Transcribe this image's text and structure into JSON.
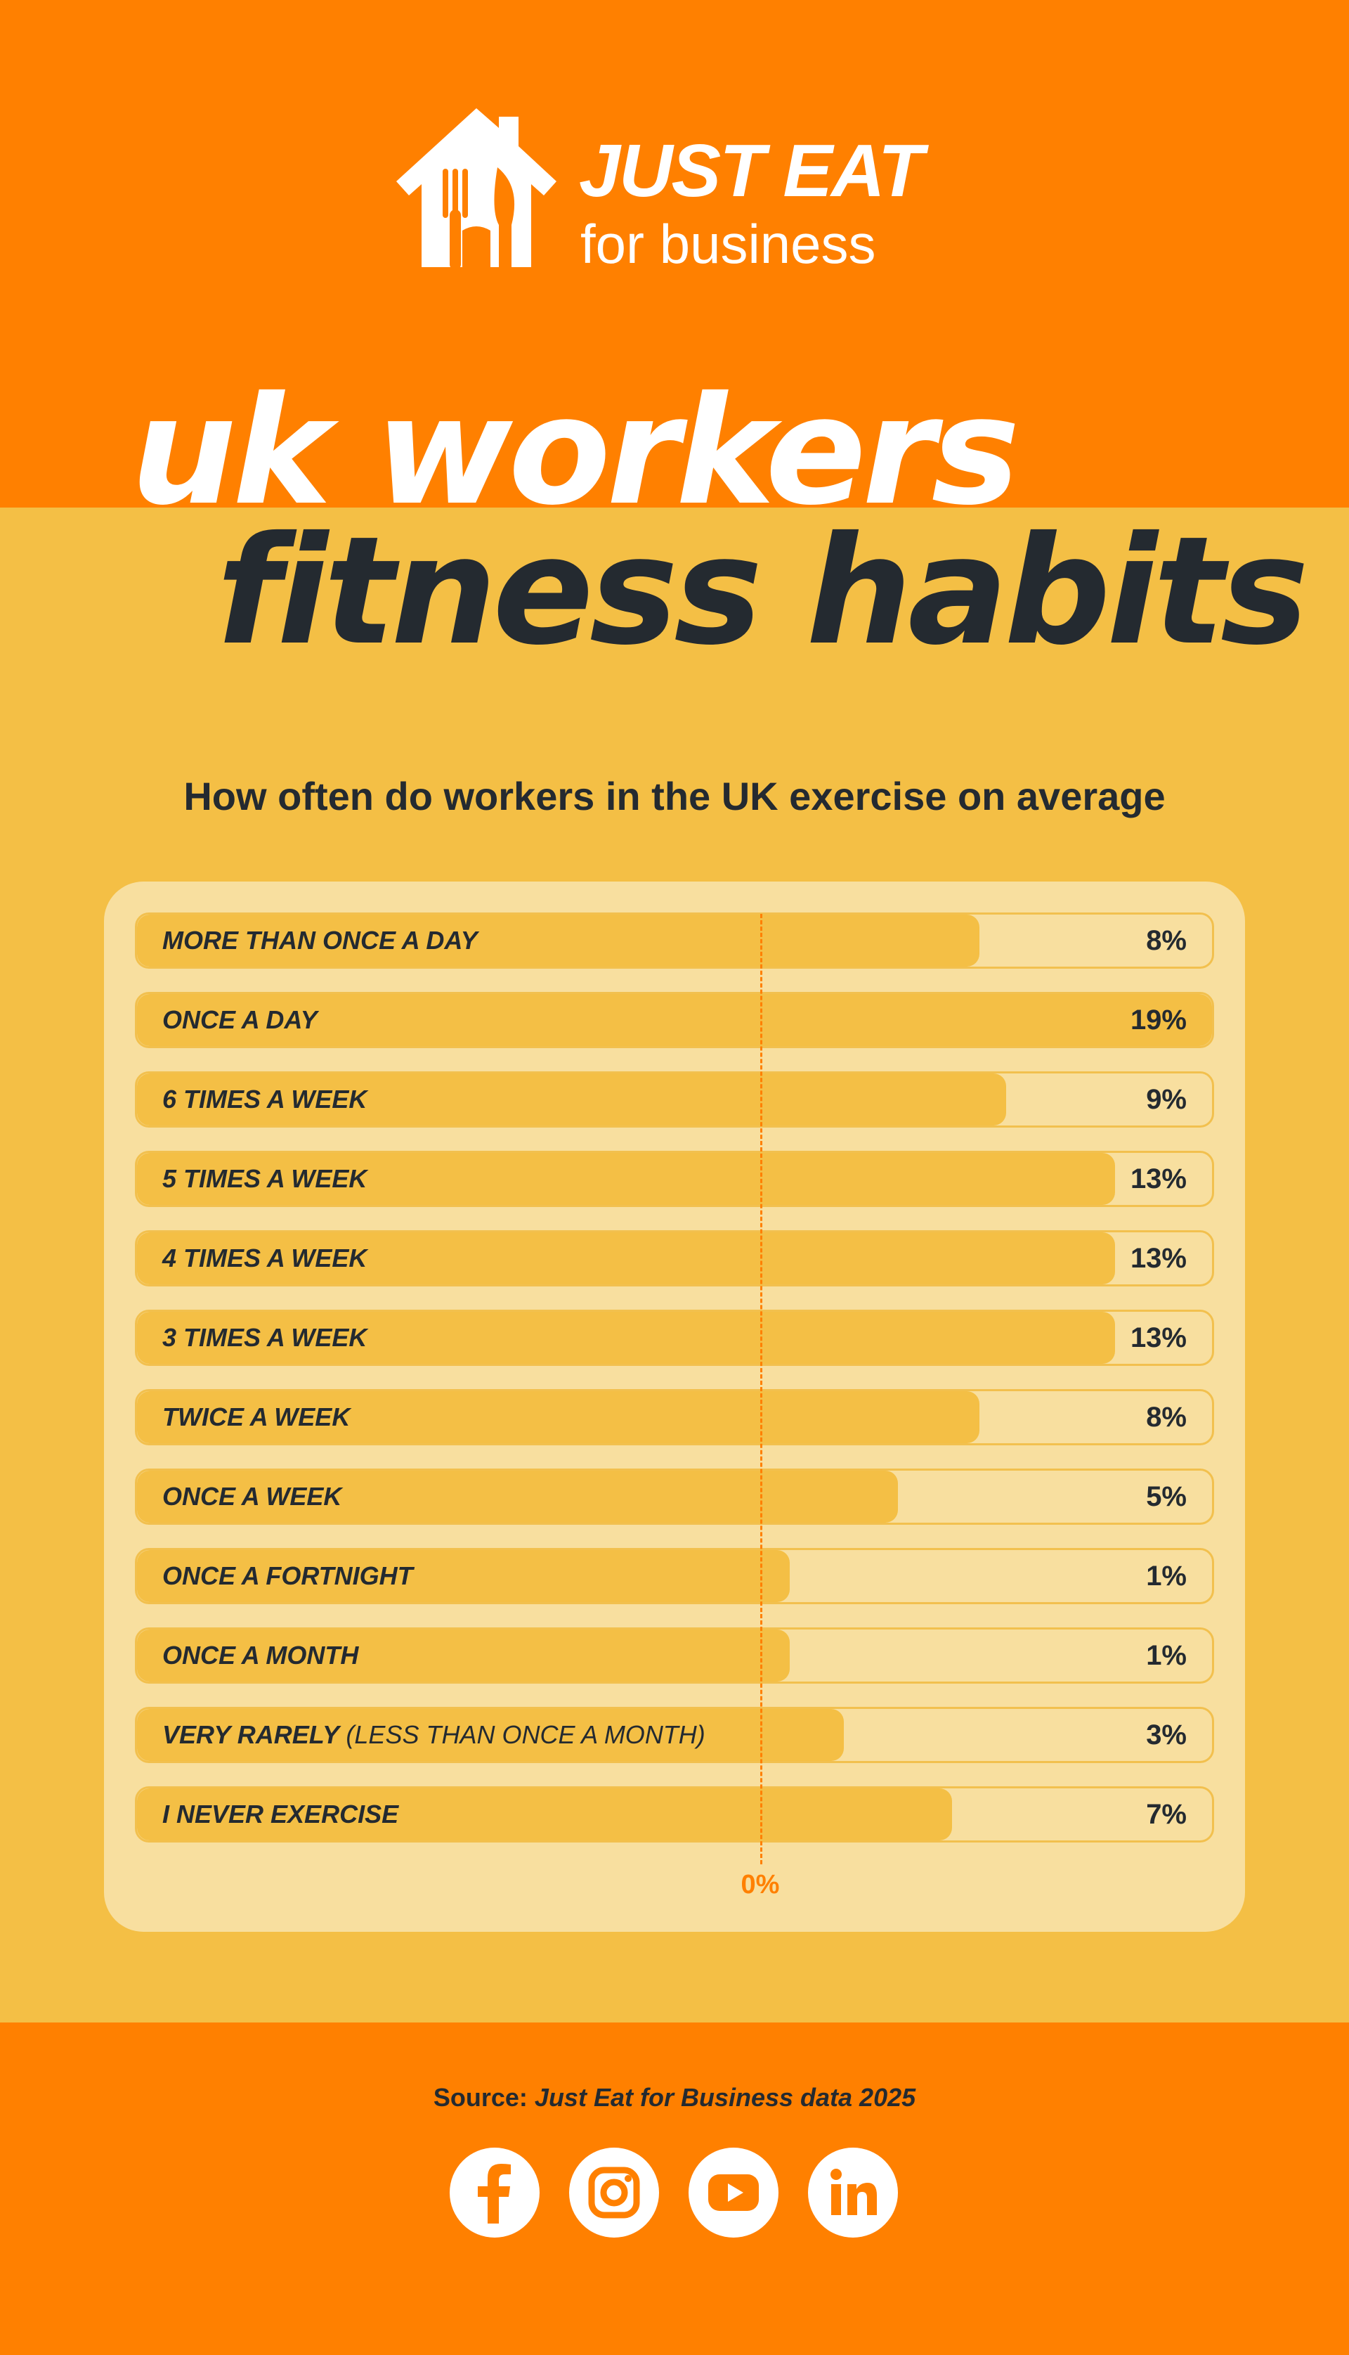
{
  "brand": {
    "name": "JUST EAT",
    "tagline": "for business"
  },
  "title": {
    "line1": "uk workers",
    "line2": "fitness habits"
  },
  "colors": {
    "orange": "#FF8000",
    "yellow": "#F4BF45",
    "panel": "#F8DF9F",
    "dark": "#242A30",
    "white": "#FFFFFF"
  },
  "chart_data": {
    "type": "bar",
    "title": "How often do workers in the UK exercise on average",
    "orientation": "horizontal",
    "axis_label": "0%",
    "categories": [
      "MORE THAN ONCE A DAY",
      "ONCE A DAY",
      "6 TIMES A WEEK",
      "5 TIMES A WEEK",
      "4 TIMES A WEEK",
      "3 TIMES A WEEK",
      "TWICE A WEEK",
      "ONCE A WEEK",
      "ONCE A FORTNIGHT",
      "ONCE A MONTH",
      "VERY RARELY (LESS THAN ONCE A MONTH)",
      "I NEVER EXERCISE"
    ],
    "values": [
      8,
      19,
      9,
      13,
      13,
      13,
      8,
      5,
      1,
      1,
      3,
      7
    ],
    "value_labels": [
      "8%",
      "19%",
      "9%",
      "13%",
      "13%",
      "13%",
      "8%",
      "5%",
      "1%",
      "1%",
      "3%",
      "7%"
    ]
  },
  "footer": {
    "source_label": "Source:",
    "source_text": "Just Eat for Business data 2025",
    "social_icons": [
      "facebook-icon",
      "instagram-icon",
      "youtube-icon",
      "linkedin-icon"
    ]
  }
}
